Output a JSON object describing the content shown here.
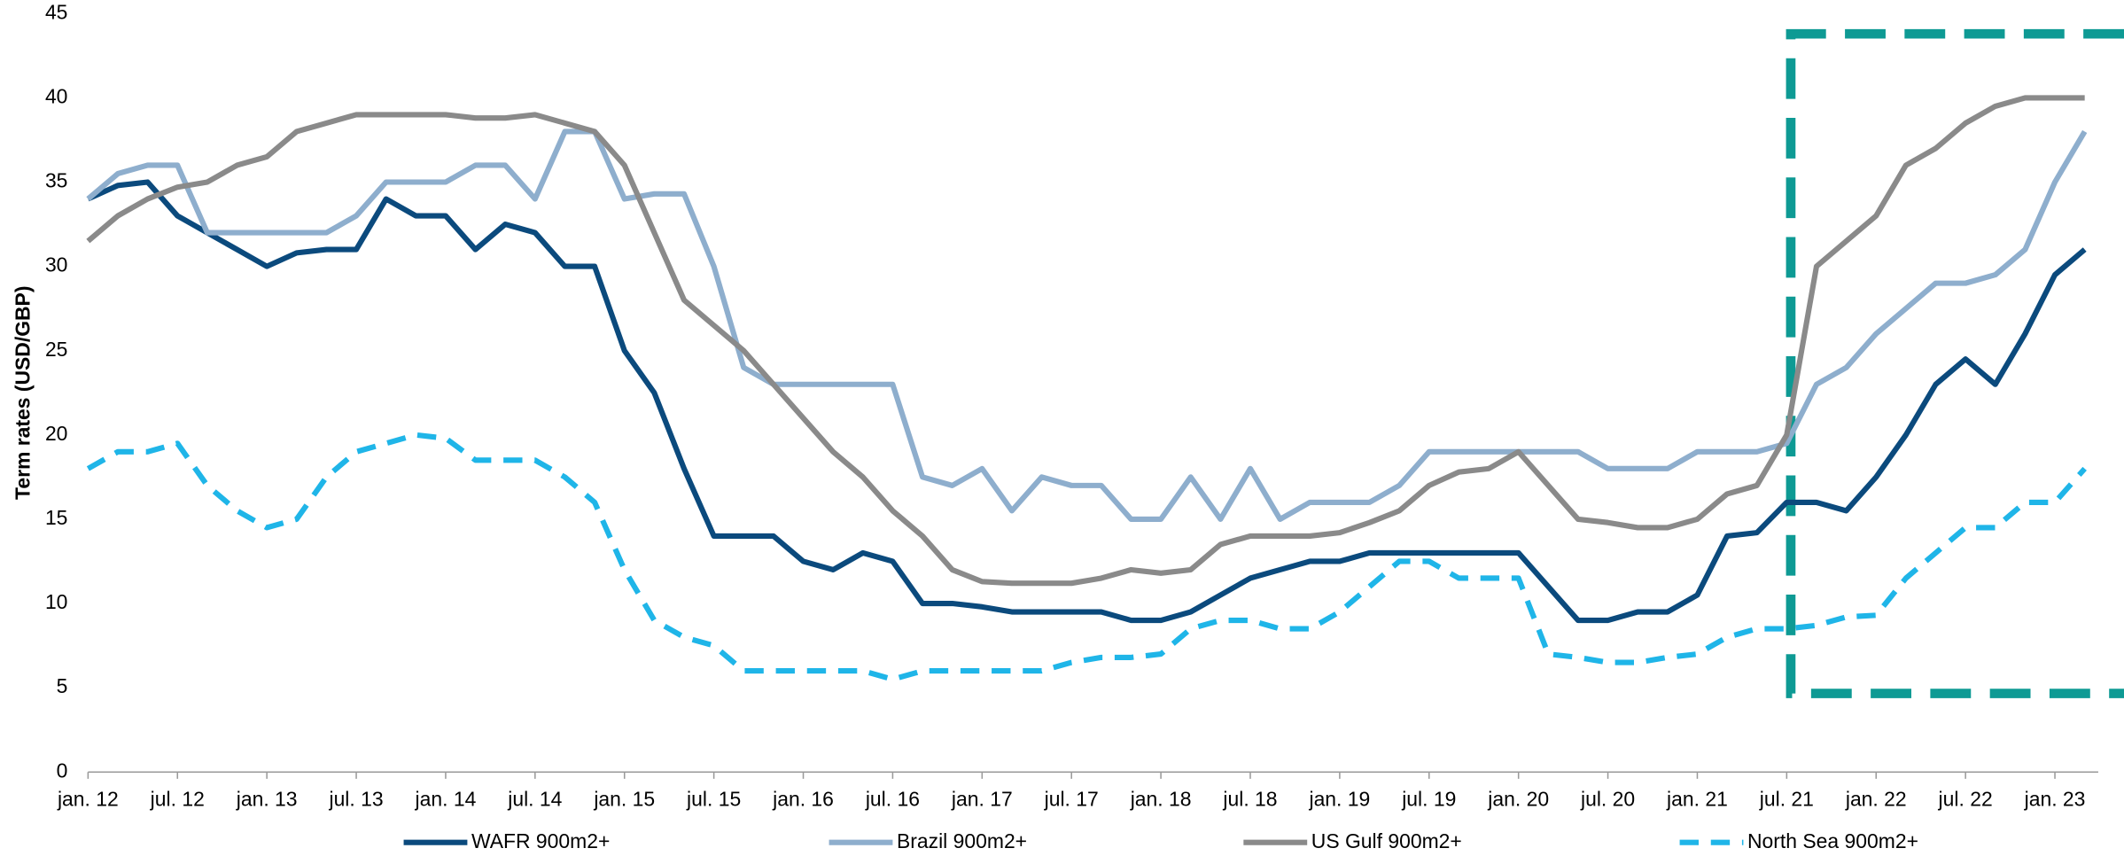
{
  "chart_data": {
    "type": "line",
    "y_label": "Term rates (USD/GBP)",
    "categories": [
      "jan. 12",
      null,
      null,
      "jul. 12",
      null,
      null,
      "jan. 13",
      null,
      null,
      "jul. 13",
      null,
      null,
      "jan. 14",
      null,
      null,
      "jul. 14",
      null,
      null,
      "jan. 15",
      null,
      null,
      "jul. 15",
      null,
      null,
      "jan. 16",
      null,
      null,
      "jul. 16",
      null,
      null,
      "jan. 17",
      null,
      null,
      "jul. 17",
      null,
      null,
      "jan. 18",
      null,
      null,
      "jul. 18",
      null,
      null,
      "jan. 19",
      null,
      null,
      "jul. 19",
      null,
      null,
      "jan. 20",
      null,
      null,
      "jul. 20",
      null,
      null,
      "jan. 21",
      null,
      null,
      "jul. 21",
      null,
      null,
      "jan. 22",
      null,
      null,
      "jul. 22",
      null,
      null,
      "jan. 23",
      null
    ],
    "series": [
      {
        "name": "WAFR 900m2+",
        "color": "#0b4a7d",
        "dashed": false,
        "values": [
          34,
          34.8,
          35,
          33,
          32,
          31,
          30,
          30.8,
          31,
          31,
          34,
          33,
          33,
          31,
          32.5,
          32,
          30,
          30,
          25,
          22.5,
          18,
          14,
          14,
          14,
          12.5,
          12,
          13,
          12.5,
          10,
          10,
          9.8,
          9.5,
          9.5,
          9.5,
          9.5,
          9,
          9,
          9.5,
          10.5,
          11.5,
          12,
          12.5,
          12.5,
          13,
          13,
          13,
          13,
          13,
          13,
          11,
          9,
          9,
          9.5,
          9.5,
          10.5,
          14,
          14.2,
          16,
          16,
          15.5,
          17.5,
          20,
          23,
          24.5,
          23,
          26,
          29.5,
          31
        ]
      },
      {
        "name": "Brazil 900m2+",
        "color": "#8eaecd",
        "dashed": false,
        "values": [
          34,
          35.5,
          36,
          36,
          32,
          32,
          32,
          32,
          32,
          33,
          35,
          35,
          35,
          36,
          36,
          34,
          38,
          38,
          34,
          34.3,
          34.3,
          30,
          24,
          23,
          23,
          23,
          23,
          23,
          17.5,
          17,
          18,
          15.5,
          17.5,
          17,
          17,
          15,
          15,
          17.5,
          15,
          18,
          15,
          16,
          16,
          16,
          17,
          19,
          19,
          19,
          19,
          19,
          19,
          18,
          18,
          18,
          19,
          19,
          19,
          19.5,
          23,
          24,
          26,
          27.5,
          29,
          29,
          29.5,
          31,
          35,
          38
        ]
      },
      {
        "name": "US Gulf 900m2+",
        "color": "#8a8a8a",
        "dashed": false,
        "values": [
          31.5,
          33,
          34,
          34.7,
          35,
          36,
          36.5,
          38,
          38.5,
          39,
          39,
          39,
          39,
          38.8,
          38.8,
          39,
          38.5,
          38,
          36,
          32,
          28,
          26.5,
          25,
          23,
          21,
          19,
          17.5,
          15.5,
          14,
          12,
          11.3,
          11.2,
          11.2,
          11.2,
          11.5,
          12,
          11.8,
          12,
          13.5,
          14,
          14,
          14,
          14.2,
          14.8,
          15.5,
          17,
          17.8,
          18,
          19,
          17,
          15,
          14.8,
          14.5,
          14.5,
          15,
          16.5,
          17,
          20,
          30,
          31.5,
          33,
          36,
          37,
          38.5,
          39.5,
          40,
          40,
          40
        ]
      },
      {
        "name": "North Sea 900m2+",
        "color": "#1fb5e8",
        "dashed": true,
        "values": [
          18,
          19,
          19,
          19.5,
          17,
          15.5,
          14.5,
          15,
          17.5,
          19,
          19.5,
          20,
          19.8,
          18.5,
          18.5,
          18.5,
          17.5,
          16,
          12,
          9,
          8,
          7.5,
          6,
          6,
          6,
          6,
          6,
          5.5,
          6,
          6,
          6,
          6,
          6,
          6.5,
          6.8,
          6.8,
          7,
          8.5,
          9,
          9,
          8.5,
          8.5,
          9.5,
          11,
          12.5,
          12.5,
          11.5,
          11.5,
          11.5,
          7,
          6.8,
          6.5,
          6.5,
          6.8,
          7,
          8,
          8.5,
          8.5,
          8.7,
          9.2,
          9.3,
          11.5,
          13,
          14.5,
          14.5,
          16,
          16,
          18
        ]
      }
    ],
    "ylim": [
      0,
      45
    ],
    "yticks": [
      0,
      5,
      10,
      15,
      20,
      25,
      30,
      35,
      40,
      45
    ],
    "grid": false,
    "legend": "bottom"
  }
}
